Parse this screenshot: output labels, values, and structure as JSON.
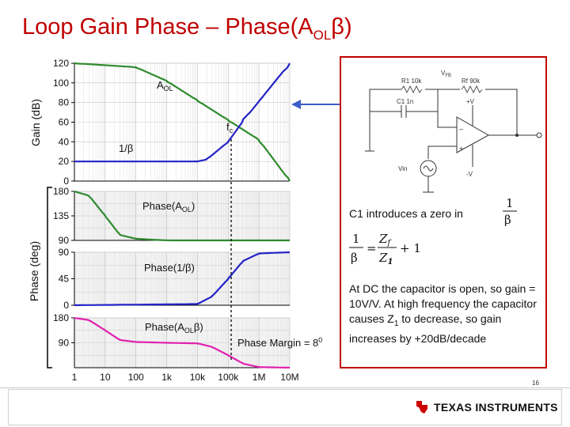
{
  "title": {
    "main": "Loop Gain Phase – Phase(A",
    "sub": "OL",
    "end": "β)"
  },
  "colors": {
    "aol": "#2e8b2e",
    "beta": "#2323c8",
    "loop": "#e020b0",
    "title": "#c00000",
    "arrow": "#3b5fc8",
    "ti_red": "#cc0000"
  },
  "chart_data": [
    {
      "type": "line",
      "ylabel": "Gain (dB)",
      "ylim": [
        0,
        120
      ],
      "yticks": [
        "0",
        "20",
        "40",
        "60",
        "80",
        "100",
        "120"
      ],
      "series": [
        {
          "name": "A_OL",
          "label": "A",
          "label_sub": "OL",
          "x": [
            1,
            100,
            1000,
            10000,
            100000,
            1000000,
            10000000
          ],
          "values": [
            120,
            116,
            102,
            82,
            62,
            42,
            0
          ]
        },
        {
          "name": "1/β",
          "label": "1/β",
          "x": [
            1,
            1000,
            10000,
            20000,
            100000,
            300000,
            10000000
          ],
          "values": [
            20,
            20,
            20,
            22,
            40,
            61,
            120
          ]
        }
      ],
      "annotations": [
        {
          "text": "f",
          "sub": "c",
          "x": 100000,
          "y": 41
        }
      ]
    },
    {
      "type": "line",
      "ylabel": "Phase (deg)",
      "ylim": [
        90,
        180
      ],
      "yticks": [
        "90",
        "135",
        "180"
      ],
      "series": [
        {
          "name": "Phase(A_OL)",
          "label": "Phase(A",
          "label_sub": "OL",
          "label_end": ")",
          "x": [
            1,
            3,
            10,
            30,
            100,
            1000,
            10000000
          ],
          "values": [
            180,
            172,
            135,
            100,
            93,
            90,
            90
          ]
        }
      ]
    },
    {
      "type": "line",
      "ylim": [
        0,
        90
      ],
      "yticks": [
        "0",
        "45",
        "90"
      ],
      "series": [
        {
          "name": "Phase(1/β)",
          "label": "Phase(1/β)",
          "x": [
            1,
            10000,
            30000,
            100000,
            300000,
            1000000,
            10000000
          ],
          "values": [
            0,
            2,
            15,
            45,
            75,
            88,
            90
          ]
        }
      ]
    },
    {
      "type": "line",
      "ylim": [
        0,
        180
      ],
      "yticks": [
        "90",
        "180"
      ],
      "xlabels": [
        "1",
        "10",
        "100",
        "1k",
        "10k",
        "100k",
        "1M",
        "10M"
      ],
      "series": [
        {
          "name": "Phase(A_OLβ)",
          "label": "Phase(A",
          "label_sub": "OL",
          "label_end": "β)",
          "x": [
            1,
            3,
            10,
            30,
            100,
            1000,
            10000,
            30000,
            100000,
            300000,
            1000000,
            10000000
          ],
          "values": [
            180,
            172,
            135,
            100,
            93,
            90,
            88,
            75,
            45,
            15,
            2,
            0
          ]
        }
      ],
      "annotations": [
        {
          "text": "Phase Margin = 8",
          "sup": "0"
        }
      ]
    }
  ],
  "circuit": {
    "r1": "R1 10k",
    "c1": "C1 1n",
    "rf": "Rf 90k",
    "vfb": "V",
    "vfb_sub": "FB",
    "plus_v": "+V",
    "minus_v": "-V",
    "minus": "–",
    "plus": "+",
    "vin": "Vin"
  },
  "callout": {
    "zero_text": "C1 introduces a zero in",
    "frac_one": "1",
    "frac_beta": "β",
    "eq_zf": "Z",
    "eq_zf_sub": "f",
    "eq_z1": "Z",
    "eq_z1_sub": "1",
    "eq_plus": "+ 1",
    "eq_equals": "=",
    "para": "At DC the capacitor is open, so gain = 10V/V. At high frequency the capacitor causes Z",
    "para_sub": "1",
    "para_end": " to decrease, so gain increases by +20dB/decade"
  },
  "footer": {
    "page": "16",
    "logo_text": "TEXAS INSTRUMENTS"
  }
}
